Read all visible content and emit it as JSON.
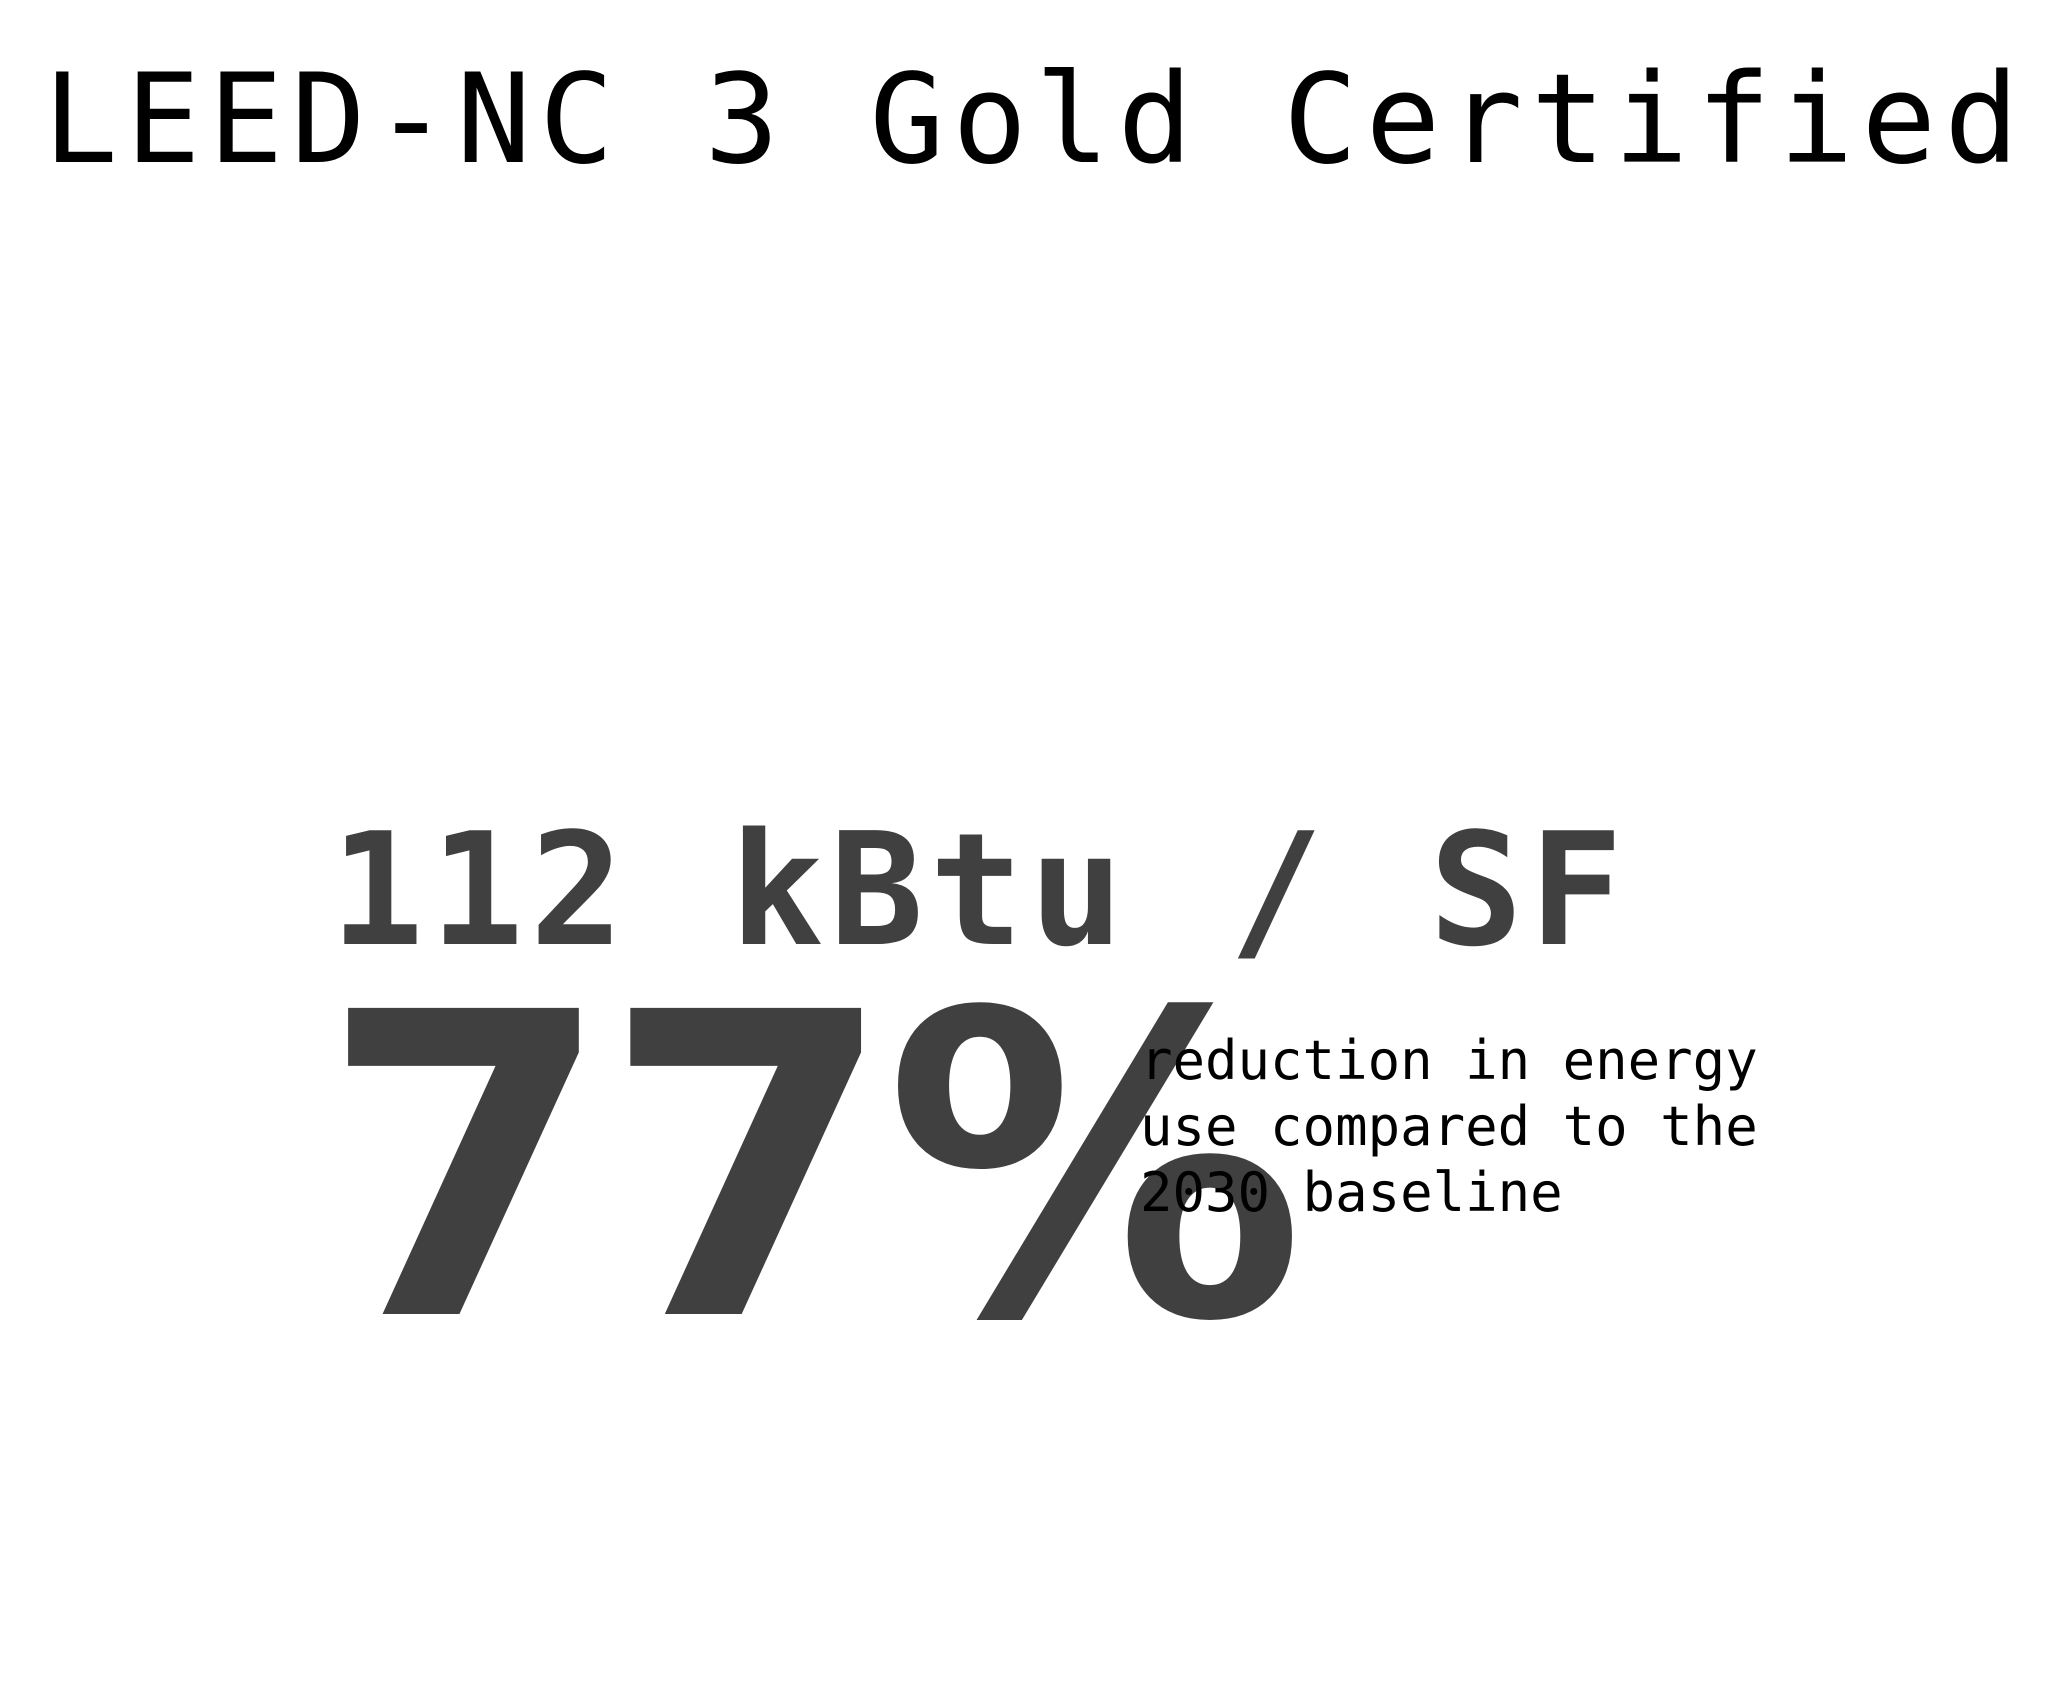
{
  "certification": {
    "title": "LEED-NC 3 Gold Certified"
  },
  "energy": {
    "intensity": "112 kBtu / SF",
    "reduction_percent": "77%",
    "description_lines": [
      "reduction in energy",
      "use compared to the",
      "2030 baseline"
    ]
  },
  "colors": {
    "title_text": "#000000",
    "stat_text": "#404040",
    "background": "#ffffff"
  }
}
